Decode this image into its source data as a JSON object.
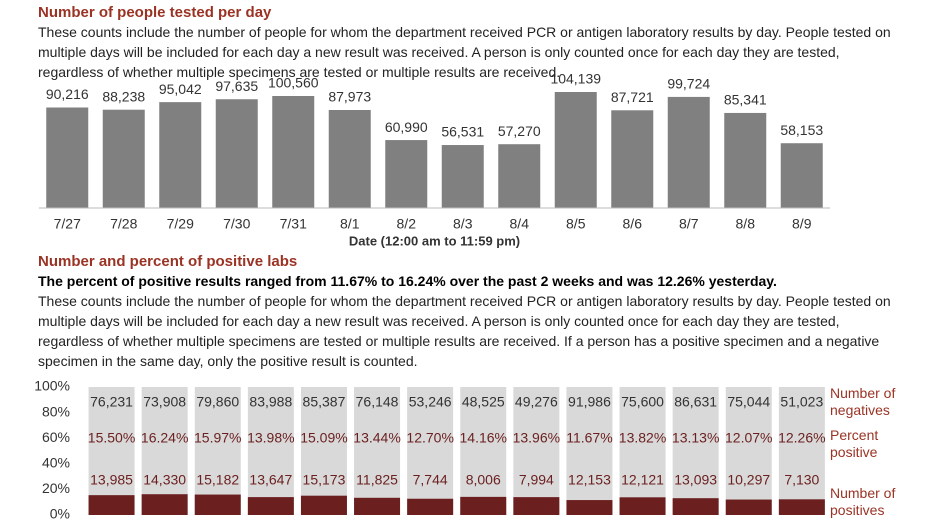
{
  "chart_data": [
    {
      "type": "bar",
      "title": "Number of people tested per day",
      "description": "These counts include the number of people for whom the department received PCR or antigen laboratory results by day. People tested on multiple days will be included for each day a new result was received. A person is only counted once for each day they are tested, regardless of whether multiple specimens are tested or multiple results are received.",
      "x_label": "Date (12:00 am to 11:59 pm)",
      "categories": [
        "7/27",
        "7/28",
        "7/29",
        "7/30",
        "7/31",
        "8/1",
        "8/2",
        "8/3",
        "8/4",
        "8/5",
        "8/6",
        "8/7",
        "8/8",
        "8/9"
      ],
      "values": [
        90216,
        88238,
        95042,
        97635,
        100560,
        87973,
        60990,
        56531,
        57270,
        104139,
        87721,
        99724,
        85341,
        58153
      ],
      "value_labels": [
        "90,216",
        "88,238",
        "95,042",
        "97,635",
        "100,560",
        "87,973",
        "60,990",
        "56,531",
        "57,270",
        "104,139",
        "87,721",
        "99,724",
        "85,341",
        "58,153"
      ],
      "color": "#808080"
    },
    {
      "type": "stacked_bar",
      "title": "Number and percent of positive labs",
      "subtitle": "The percent of positive results ranged from 11.67% to 16.24% over the past 2 weeks and was 12.26% yesterday.",
      "description": "These counts include the number of people for whom the department received PCR or antigen laboratory results by day. People tested on multiple days will be included for each day a new result was received. A person is only counted once for each day they are tested, regardless of whether multiple specimens are tested or multiple results are received. If a person has a positive specimen and a negative specimen in the same day, only the positive result is counted.",
      "ylim": [
        0,
        100
      ],
      "yticks": [
        {
          "value": 0,
          "label": "0%"
        },
        {
          "value": 20,
          "label": "20%"
        },
        {
          "value": 40,
          "label": "40%"
        },
        {
          "value": 60,
          "label": "60%"
        },
        {
          "value": 80,
          "label": "80%"
        },
        {
          "value": 100,
          "label": "100%"
        }
      ],
      "percent": {
        "name": "Percent positive",
        "color": "#6b1f1f",
        "values": [
          15.5,
          16.24,
          15.97,
          13.98,
          15.09,
          13.44,
          12.7,
          14.16,
          13.96,
          11.67,
          13.82,
          13.13,
          12.07,
          12.26
        ],
        "value_labels": [
          "15.50%",
          "16.24%",
          "15.97%",
          "13.98%",
          "15.09%",
          "13.44%",
          "12.70%",
          "14.16%",
          "13.96%",
          "11.67%",
          "13.82%",
          "13.13%",
          "12.07%",
          "12.26%"
        ]
      },
      "negatives": {
        "name": "Number of negatives",
        "color": "#d9d9d9",
        "values": [
          76231,
          73908,
          79860,
          83988,
          85387,
          76148,
          53246,
          48525,
          49276,
          91986,
          75600,
          86631,
          75044,
          51023
        ],
        "value_labels": [
          "76,231",
          "73,908",
          "79,860",
          "83,988",
          "85,387",
          "76,148",
          "53,246",
          "48,525",
          "49,276",
          "91,986",
          "75,600",
          "86,631",
          "75,044",
          "51,023"
        ]
      },
      "positives": {
        "name": "Number of positives",
        "values": [
          13985,
          14330,
          15182,
          13647,
          15173,
          11825,
          7744,
          8006,
          7994,
          12153,
          12121,
          13093,
          10297,
          7130
        ],
        "value_labels": [
          "13,985",
          "14,330",
          "15,182",
          "13,647",
          "15,173",
          "11,825",
          "7,744",
          "8,006",
          "7,994",
          "12,153",
          "12,121",
          "13,093",
          "10,297",
          "7,130"
        ]
      }
    }
  ]
}
